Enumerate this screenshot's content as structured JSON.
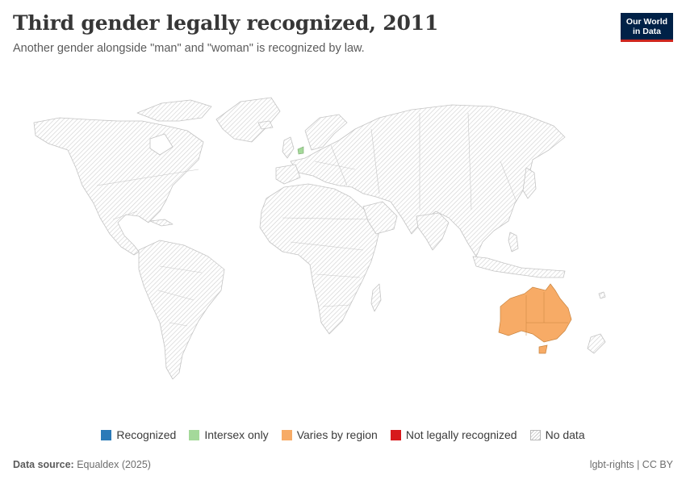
{
  "header": {
    "title": "Third gender legally recognized, 2011",
    "subtitle": "Another gender alongside \"man\" and \"woman\" is recognized by law.",
    "logo_line1": "Our World",
    "logo_line2": "in Data"
  },
  "colors": {
    "recognized": "#2b7ab8",
    "intersex_only": "#a4d99a",
    "varies_by_region": "#f7ab66",
    "not_legally_recognized": "#d7191c",
    "no_data": "#d0d0d0",
    "brand_navy": "#002147",
    "brand_red": "#ce261e"
  },
  "map": {
    "year": "2011",
    "regions": [
      {
        "region": "Australia",
        "category": "Varies by region"
      },
      {
        "region": "Netherlands",
        "category": "Intersex only"
      },
      {
        "region": "All other countries",
        "category": "No data"
      }
    ]
  },
  "legend": {
    "items": [
      {
        "label": "Recognized",
        "color": "#2b7ab8"
      },
      {
        "label": "Intersex only",
        "color": "#a4d99a"
      },
      {
        "label": "Varies by region",
        "color": "#f7ab66"
      },
      {
        "label": "Not legally recognized",
        "color": "#d7191c"
      },
      {
        "label": "No data",
        "color": "hatched"
      }
    ]
  },
  "footer": {
    "source_label": "Data source:",
    "source_value": "Equaldex (2025)",
    "right_topic": "lgbt-rights",
    "right_sep": "|",
    "right_license": "CC BY"
  }
}
